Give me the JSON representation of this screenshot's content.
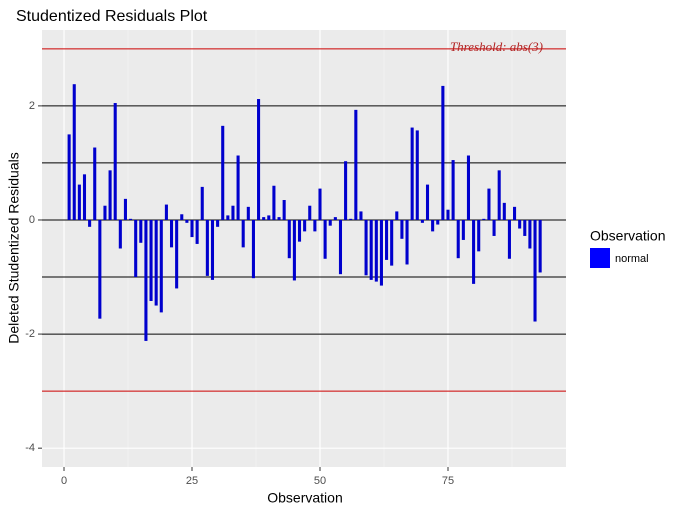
{
  "chart_data": {
    "type": "bar",
    "title": "Studentized Residuals Plot",
    "xlabel": "Observation",
    "ylabel": "Deleted Studentized Residuals",
    "annotation": "Threshold: abs(3)",
    "legend": {
      "title": "Observation",
      "position": "right"
    },
    "series": [
      {
        "name": "normal",
        "color": "#0000cd",
        "values": [
          1.5,
          2.38,
          0.62,
          0.8,
          -0.12,
          1.27,
          -1.73,
          0.25,
          0.87,
          2.05,
          -0.5,
          0.37,
          0.02,
          -1.0,
          -0.4,
          -2.12,
          -1.42,
          -1.5,
          -1.62,
          0.27,
          -0.48,
          -1.2,
          0.1,
          -0.05,
          -0.3,
          -0.42,
          0.58,
          -0.98,
          -1.05,
          -0.12,
          1.65,
          0.08,
          0.25,
          1.13,
          -0.48,
          0.23,
          -1.02,
          2.12,
          0.05,
          0.08,
          0.6,
          0.05,
          0.35,
          -0.67,
          -1.06,
          -0.38,
          -0.2,
          0.25,
          -0.2,
          0.55,
          -0.68,
          -0.1,
          0.05,
          -0.95,
          1.03,
          0.02,
          1.93,
          0.15,
          -0.97,
          -1.05,
          -1.08,
          -1.15,
          -0.7,
          -0.8,
          0.15,
          -0.33,
          -0.78,
          1.62,
          1.57,
          -0.05,
          0.62,
          -0.2,
          -0.08,
          2.35,
          0.18,
          1.05,
          -0.67,
          -0.35,
          1.13,
          -1.12,
          -0.55,
          0.02,
          0.55,
          -0.28,
          0.87,
          0.3,
          -0.68,
          0.23,
          -0.15,
          -0.28,
          -0.5,
          -1.78,
          -0.92
        ]
      }
    ],
    "x": [
      1,
      2,
      3,
      4,
      5,
      6,
      7,
      8,
      9,
      10,
      11,
      12,
      13,
      14,
      15,
      16,
      17,
      18,
      19,
      20,
      21,
      22,
      23,
      24,
      25,
      26,
      27,
      28,
      29,
      30,
      31,
      32,
      33,
      34,
      35,
      36,
      37,
      38,
      39,
      40,
      41,
      42,
      43,
      44,
      45,
      46,
      47,
      48,
      49,
      50,
      51,
      52,
      53,
      54,
      55,
      56,
      57,
      58,
      59,
      60,
      61,
      62,
      63,
      64,
      65,
      66,
      67,
      68,
      69,
      70,
      71,
      72,
      73,
      74,
      75,
      76,
      77,
      78,
      79,
      80,
      81,
      82,
      83,
      84,
      85,
      86,
      87,
      88,
      89,
      90,
      91,
      92,
      93
    ],
    "reference_lines": [
      {
        "value": 3,
        "color": "#cc0000"
      },
      {
        "value": -3,
        "color": "#cc0000"
      },
      {
        "value": 2,
        "color": "#000000"
      },
      {
        "value": 1,
        "color": "#000000"
      },
      {
        "value": 0,
        "color": "#000000"
      },
      {
        "value": -1,
        "color": "#000000"
      },
      {
        "value": -2,
        "color": "#000000"
      }
    ],
    "xlim": [
      -4.3,
      98.05
    ],
    "ylim": [
      -4.33,
      3.33
    ],
    "xticks": [
      0,
      25,
      50,
      75
    ],
    "yticks": [
      -4,
      -2,
      0,
      2
    ],
    "x_minor_ticks": [
      12.5,
      37.5,
      62.5,
      87.5
    ],
    "grid": true
  }
}
